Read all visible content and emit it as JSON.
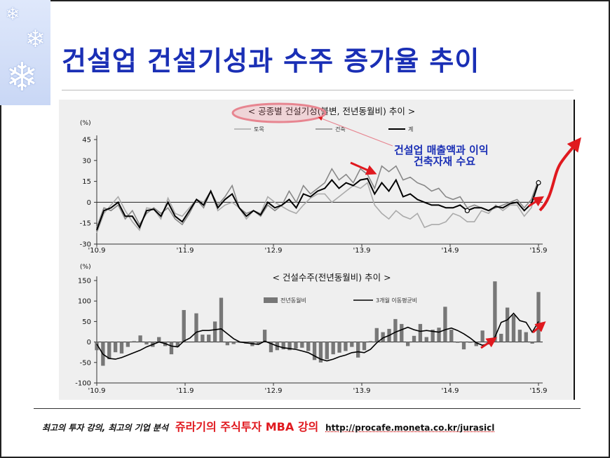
{
  "slide": {
    "title": "건설업 건설기성과 수주 증가율 추이",
    "annotation": "건설업 매출액과 이익\n건축자재 수요",
    "footer_left": "최고의 투자 강의, 최고의 기업 분석",
    "footer_brand": "쥬라기의 주식투자 MBA 강의",
    "footer_url": "http://procafe.moneta.co.kr/jurasicl"
  },
  "colors": {
    "title": "#1a2fb5",
    "arrow": "#e0191f",
    "black_line": "#000000",
    "gray_line": "#888888",
    "light_line": "#aaaaaa",
    "bar": "#777777"
  },
  "chart_data": [
    {
      "type": "line",
      "title": "< 공종별 건설기성(불변, 전년동월비) 추이 >",
      "ylabel": "(%)",
      "ylim": [
        -30,
        45
      ],
      "yticks": [
        -30,
        -15,
        0,
        15,
        30,
        45
      ],
      "xtick_labels": [
        "'10.9",
        "'11.9",
        "'12.9",
        "'13.9",
        "'14.9",
        "'15.9"
      ],
      "legend": [
        "토목",
        "건축",
        "계"
      ],
      "series": [
        {
          "name": "토목",
          "values": [
            -22,
            -8,
            -2,
            4,
            -6,
            -14,
            -20,
            -4,
            -5,
            -12,
            3,
            -8,
            -10,
            -4,
            2,
            0,
            8,
            -6,
            -2,
            0,
            -4,
            -12,
            -6,
            -8,
            4,
            0,
            -3,
            -6,
            -8,
            -2,
            3,
            6,
            6,
            0,
            4,
            8,
            12,
            10,
            14,
            -2,
            -8,
            -12,
            -6,
            -10,
            -12,
            -8,
            -18,
            -16,
            -16,
            -14,
            -8,
            -10,
            -14,
            -14,
            -6,
            -8,
            -2,
            -6,
            -2,
            -2,
            -10,
            -4,
            14
          ]
        },
        {
          "name": "건축",
          "values": [
            -18,
            -4,
            -6,
            -2,
            -12,
            -6,
            -16,
            -8,
            -4,
            -8,
            -4,
            -12,
            -16,
            -8,
            2,
            -4,
            8,
            -2,
            4,
            12,
            -4,
            -8,
            -6,
            -10,
            -2,
            -6,
            -2,
            8,
            0,
            12,
            6,
            10,
            14,
            24,
            16,
            20,
            14,
            24,
            20,
            10,
            26,
            22,
            26,
            16,
            18,
            14,
            12,
            8,
            10,
            4,
            2,
            4,
            -4,
            -2,
            -4,
            -6,
            -4,
            -2,
            0,
            2,
            -4,
            2,
            16
          ]
        },
        {
          "name": "계",
          "values": [
            -20,
            -6,
            -4,
            0,
            -10,
            -10,
            -18,
            -6,
            -5,
            -10,
            0,
            -10,
            -14,
            -6,
            2,
            -2,
            8,
            -4,
            2,
            6,
            -4,
            -10,
            -6,
            -9,
            0,
            -4,
            -2,
            2,
            -4,
            6,
            4,
            8,
            10,
            16,
            10,
            14,
            12,
            16,
            17,
            6,
            14,
            8,
            16,
            4,
            6,
            2,
            0,
            -2,
            -2,
            -4,
            -4,
            -2,
            -6,
            -4,
            -4,
            -6,
            -3,
            -4,
            -1,
            0,
            -6,
            -1,
            14
          ]
        }
      ]
    },
    {
      "type": "bar",
      "title": "< 건설수주(전년동월비) 추이 >",
      "ylabel": "(%)",
      "ylim": [
        -100,
        150
      ],
      "yticks": [
        -100,
        -50,
        0,
        50,
        100,
        150
      ],
      "xtick_labels": [
        "'10.9",
        "'11.9",
        "'12.9",
        "'13.9",
        "'14.9",
        "'15.9"
      ],
      "legend": [
        "전년동월비",
        "3개월 이동평균비"
      ],
      "series": [
        {
          "name": "전년동월비",
          "values": [
            -20,
            -58,
            -42,
            -25,
            -28,
            -12,
            2,
            16,
            -6,
            -12,
            12,
            -10,
            -30,
            -12,
            78,
            0,
            70,
            18,
            18,
            50,
            108,
            -8,
            -5,
            -2,
            -4,
            -10,
            -6,
            30,
            -25,
            -20,
            -18,
            -20,
            -16,
            -14,
            -22,
            -44,
            -50,
            -42,
            -30,
            -26,
            -22,
            -12,
            -38,
            -20,
            2,
            34,
            24,
            32,
            56,
            44,
            -10,
            15,
            44,
            12,
            30,
            35,
            86,
            30,
            -2,
            -18,
            -2,
            -10,
            28,
            -6,
            148,
            20,
            84,
            66,
            30,
            24,
            -4,
            122
          ]
        },
        {
          "name": "3개월 이동평균비",
          "values": [
            -5,
            -30,
            -40,
            -42,
            -38,
            -32,
            -26,
            -20,
            -12,
            -6,
            0,
            -4,
            -10,
            -12,
            2,
            10,
            24,
            28,
            28,
            30,
            32,
            20,
            8,
            0,
            -2,
            -4,
            -6,
            2,
            -4,
            -10,
            -14,
            -16,
            -18,
            -22,
            -26,
            -34,
            -42,
            -46,
            -42,
            -36,
            -32,
            -26,
            -24,
            -26,
            -18,
            -2,
            10,
            16,
            24,
            30,
            36,
            30,
            26,
            28,
            26,
            24,
            30,
            34,
            28,
            20,
            10,
            -2,
            -8,
            -4,
            12,
            48,
            54,
            70,
            52,
            48,
            24,
            50
          ]
        }
      ]
    }
  ]
}
